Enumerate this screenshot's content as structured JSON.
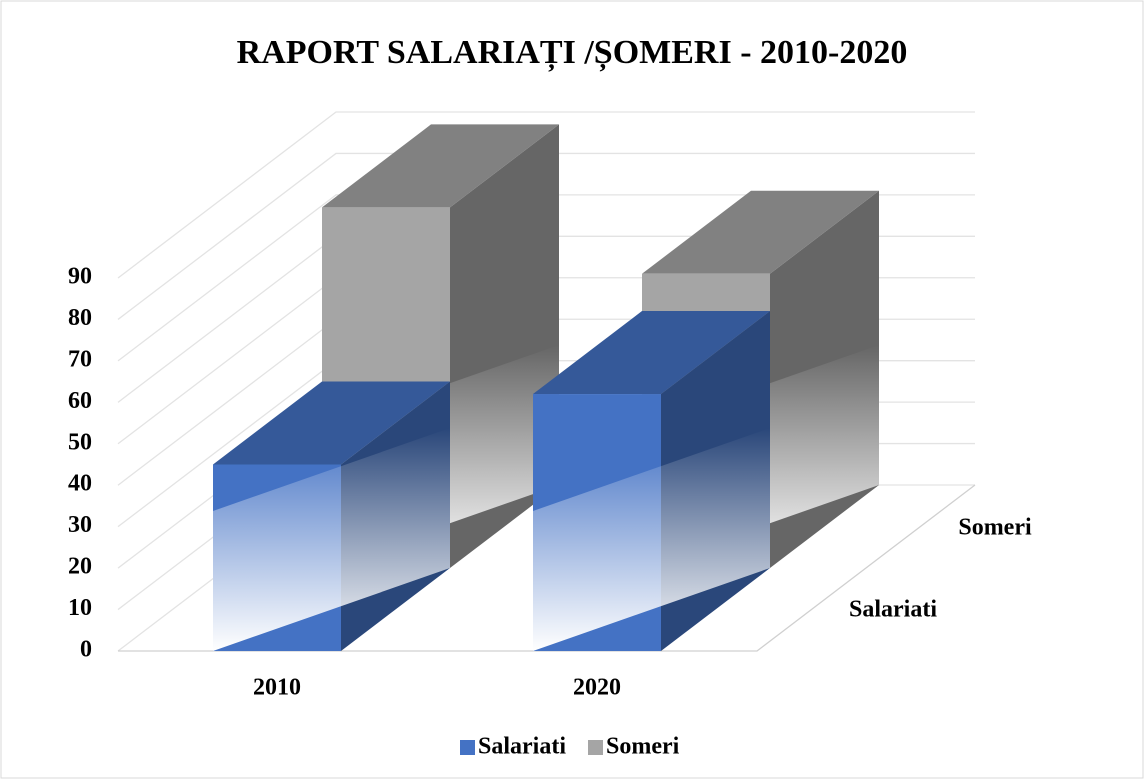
{
  "chart_data": {
    "type": "bar3d",
    "title": "RAPORT SALARIAȚI /ȘOMERI - 2010-2020",
    "categories": [
      "2010",
      "2020"
    ],
    "series": [
      {
        "name": "Salariati",
        "color": "#4472c4",
        "values": [
          45,
          62
        ]
      },
      {
        "name": "Someri",
        "color": "#a5a5a5",
        "values": [
          87,
          71
        ]
      }
    ],
    "ylim": [
      0,
      90
    ],
    "yticks": [
      0,
      10,
      20,
      30,
      40,
      50,
      60,
      70,
      80,
      90
    ],
    "grid": true,
    "legend": "bottom"
  }
}
